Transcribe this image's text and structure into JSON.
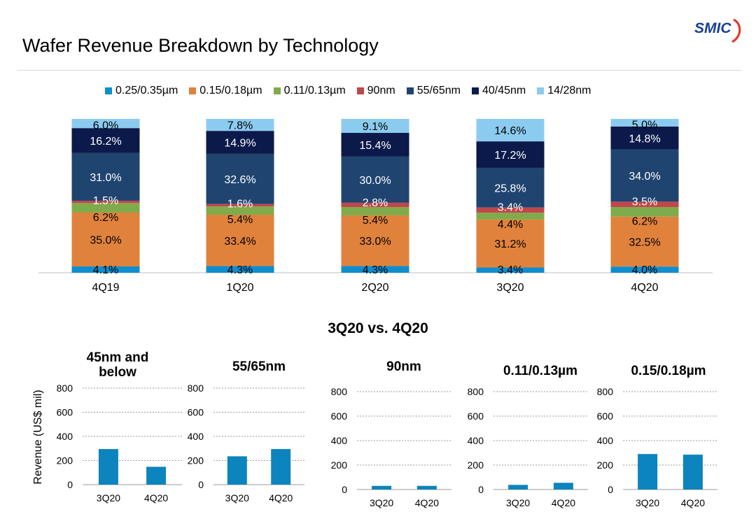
{
  "page": {
    "title": "Wafer Revenue Breakdown by Technology",
    "logo_text": "SMIC",
    "section_title": "3Q20 vs. 4Q20"
  },
  "colors": {
    "0.25/0.35µm": "#0e8ecf",
    "0.15/0.18µm": "#e0823c",
    "0.11/0.13µm": "#7fab4a",
    "90nm": "#c0474b",
    "55/65nm": "#1f4470",
    "40/45nm": "#0b1a4a",
    "14/28nm": "#8ccbf0",
    "mini_bar": "#0c84bd",
    "logo": "#1a3f99",
    "logo_accent": "#e63127"
  },
  "chart_data": [
    {
      "type": "bar",
      "stacked": true,
      "percent": true,
      "categories": [
        "4Q19",
        "1Q20",
        "2Q20",
        "3Q20",
        "4Q20"
      ],
      "series": [
        {
          "name": "0.25/0.35µm",
          "values": [
            4.1,
            4.3,
            4.3,
            3.4,
            4.0
          ],
          "labels": [
            "4.1%",
            "4.3%",
            "4.3%",
            "3.4%",
            "4.0%"
          ]
        },
        {
          "name": "0.15/0.18µm",
          "values": [
            35.0,
            33.4,
            33.0,
            31.2,
            32.5
          ],
          "labels": [
            "35.0%",
            "33.4%",
            "33.0%",
            "31.2%",
            "32.5%"
          ]
        },
        {
          "name": "0.11/0.13µm",
          "values": [
            6.2,
            5.4,
            5.4,
            4.4,
            6.2
          ],
          "labels": [
            "6.2%",
            "5.4%",
            "5.4%",
            "4.4%",
            "6.2%"
          ]
        },
        {
          "name": "90nm",
          "values": [
            1.5,
            1.6,
            2.8,
            3.4,
            3.5
          ],
          "labels": [
            "1.5%",
            "1.6%",
            "2.8%",
            "3.4%",
            "3.5%"
          ]
        },
        {
          "name": "55/65nm",
          "values": [
            31.0,
            32.6,
            30.0,
            25.8,
            34.0
          ],
          "labels": [
            "31.0%",
            "32.6%",
            "30.0%",
            "25.8%",
            "34.0%"
          ]
        },
        {
          "name": "40/45nm",
          "values": [
            16.2,
            14.9,
            15.4,
            17.2,
            14.8
          ],
          "labels": [
            "16.2%",
            "14.9%",
            "15.4%",
            "17.2%",
            "14.8%"
          ]
        },
        {
          "name": "14/28nm",
          "values": [
            6.0,
            7.8,
            9.1,
            14.6,
            5.0
          ],
          "labels": [
            "6.0%",
            "7.8%",
            "9.1%",
            "14.6%",
            "5.0%"
          ]
        }
      ],
      "legend": "top"
    },
    {
      "type": "bar",
      "title": "45nm and below",
      "categories": [
        "3Q20",
        "4Q20"
      ],
      "values": [
        295,
        148
      ],
      "ylim": [
        0,
        800
      ],
      "yticks": [
        "0",
        "200",
        "400",
        "600",
        "800"
      ],
      "ylabel": "Revenue (US$  mil)"
    },
    {
      "type": "bar",
      "title": "55/65nm",
      "categories": [
        "3Q20",
        "4Q20"
      ],
      "values": [
        235,
        295
      ],
      "ylim": [
        0,
        800
      ],
      "yticks": [
        "0",
        "200",
        "400",
        "600",
        "800"
      ]
    },
    {
      "type": "bar",
      "title": "90nm",
      "categories": [
        "3Q20",
        "4Q20"
      ],
      "values": [
        30,
        30
      ],
      "ylim": [
        0,
        800
      ],
      "yticks": [
        "0",
        "200",
        "400",
        "600",
        "800"
      ]
    },
    {
      "type": "bar",
      "title": "0.11/0.13µm",
      "categories": [
        "3Q20",
        "4Q20"
      ],
      "values": [
        38,
        55
      ],
      "ylim": [
        0,
        800
      ],
      "yticks": [
        "0",
        "200",
        "400",
        "600",
        "800"
      ]
    },
    {
      "type": "bar",
      "title": "0.15/0.18µm",
      "categories": [
        "3Q20",
        "4Q20"
      ],
      "values": [
        290,
        285
      ],
      "ylim": [
        0,
        800
      ],
      "yticks": [
        "0",
        "200",
        "400",
        "600",
        "800"
      ]
    }
  ]
}
